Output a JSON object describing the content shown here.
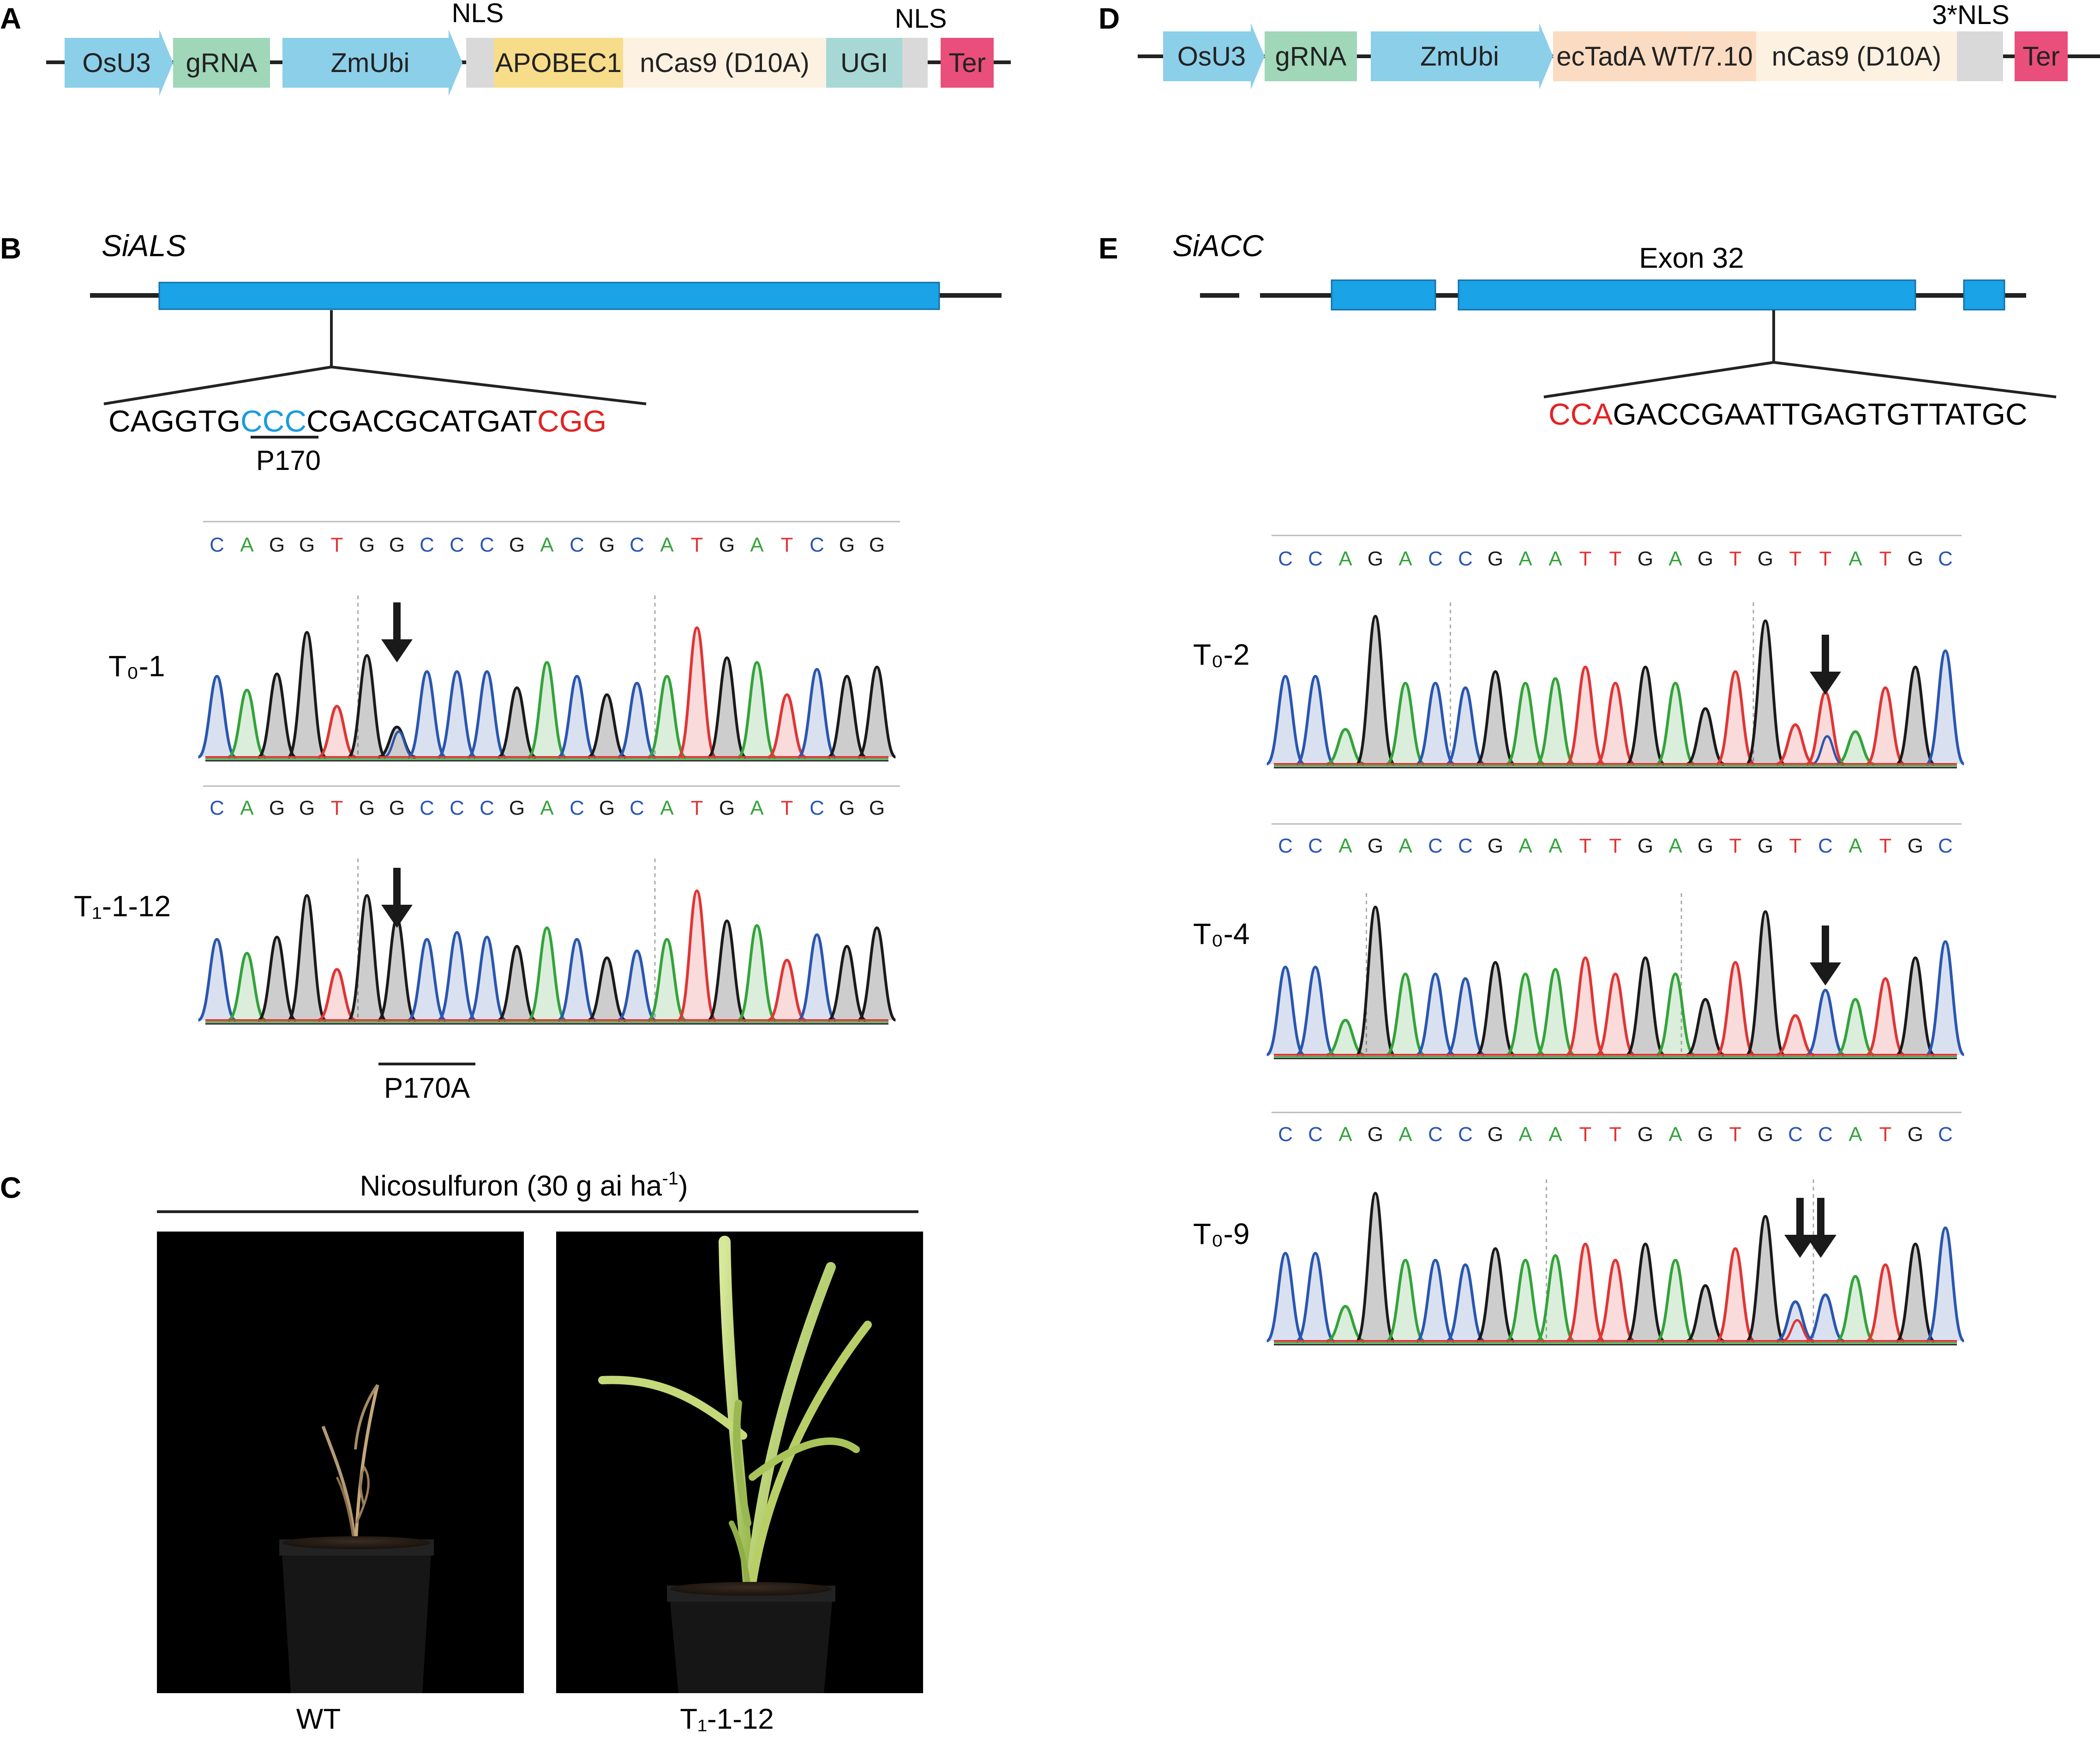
{
  "panels": {
    "a": {
      "letter": "A",
      "nls_left": "NLS",
      "nls_right": "NLS",
      "parts": [
        {
          "label": "OsU3",
          "color": "#8ccfe9"
        },
        {
          "label": "gRNA",
          "color": "#9fd7b8"
        },
        {
          "label": "ZmUbi",
          "color": "#8ccfe9"
        },
        {
          "label": "",
          "color": "#d9d9d9"
        },
        {
          "label": "APOBEC1",
          "color": "#f7dc8a"
        },
        {
          "label": "nCas9 (D10A)",
          "color": "#fdf1e1"
        },
        {
          "label": "UGI",
          "color": "#a8d8d5"
        },
        {
          "label": "",
          "color": "#d9d9d9"
        },
        {
          "label": "Ter",
          "color": "#e94f7a"
        }
      ]
    },
    "b": {
      "letter": "B",
      "gene": "SiALS",
      "seq_pre": "CAGGTG",
      "seq_target": "CCC",
      "seq_mid": "CGACGCATGAT",
      "seq_pam": "CGG",
      "codon_label": "P170",
      "traces": [
        {
          "label": "T₀-1",
          "bases": [
            "C",
            "A",
            "G",
            "G",
            "T",
            "G",
            "G",
            "C",
            "C",
            "C",
            "G",
            "A",
            "C",
            "G",
            "C",
            "A",
            "T",
            "G",
            "A",
            "T",
            "C",
            "G",
            "G"
          ]
        },
        {
          "label": "T₁-1-12",
          "bases": [
            "C",
            "A",
            "G",
            "G",
            "T",
            "G",
            "G",
            "C",
            "C",
            "C",
            "G",
            "A",
            "C",
            "G",
            "C",
            "A",
            "T",
            "G",
            "A",
            "T",
            "C",
            "G",
            "G"
          ]
        }
      ],
      "mutation_label": "P170A"
    },
    "c": {
      "letter": "C",
      "treatment": "Nicosulfuron (30 g ai ha",
      "treatment_sup": "-1",
      "treatment_end": ")",
      "photos": [
        {
          "label": "WT"
        },
        {
          "label": "T₁-1-12"
        }
      ]
    },
    "d": {
      "letter": "D",
      "nls": "3*NLS",
      "parts": [
        {
          "label": "OsU3",
          "color": "#8ccfe9"
        },
        {
          "label": "gRNA",
          "color": "#9fd7b8"
        },
        {
          "label": "ZmUbi",
          "color": "#8ccfe9"
        },
        {
          "label": "ecTadA WT/7.10",
          "color": "#fbdcc2"
        },
        {
          "label": "nCas9 (D10A)",
          "color": "#fdf1e1"
        },
        {
          "label": "",
          "color": "#d9d9d9"
        },
        {
          "label": "Ter",
          "color": "#e94f7a"
        }
      ]
    },
    "e": {
      "letter": "E",
      "gene": "SiACC",
      "exon_label": "Exon 32",
      "seq_pam": "CCA",
      "seq_rest": "GACCGAATTGAGTGTTATGC",
      "traces": [
        {
          "label": "T₀-2",
          "bases": [
            "C",
            "C",
            "A",
            "G",
            "A",
            "C",
            "C",
            "G",
            "A",
            "A",
            "T",
            "T",
            "G",
            "A",
            "G",
            "T",
            "G",
            "T",
            "T",
            "A",
            "T",
            "G",
            "C"
          ]
        },
        {
          "label": "T₀-4",
          "bases": [
            "C",
            "C",
            "A",
            "G",
            "A",
            "C",
            "C",
            "G",
            "A",
            "A",
            "T",
            "T",
            "G",
            "A",
            "G",
            "T",
            "G",
            "T",
            "C",
            "A",
            "T",
            "G",
            "C"
          ]
        },
        {
          "label": "T₀-9",
          "bases": [
            "C",
            "C",
            "A",
            "G",
            "A",
            "C",
            "C",
            "G",
            "A",
            "A",
            "T",
            "T",
            "G",
            "A",
            "G",
            "T",
            "G",
            "C",
            "C",
            "A",
            "T",
            "G",
            "C"
          ]
        }
      ]
    }
  },
  "colors": {
    "exon": "#1aa3e6",
    "pam": "#e32222",
    "target": "#1a9be0",
    "base_A": "#33a33a",
    "base_C": "#2a56b0",
    "base_G": "#1a1a1a",
    "base_T": "#e03535"
  }
}
